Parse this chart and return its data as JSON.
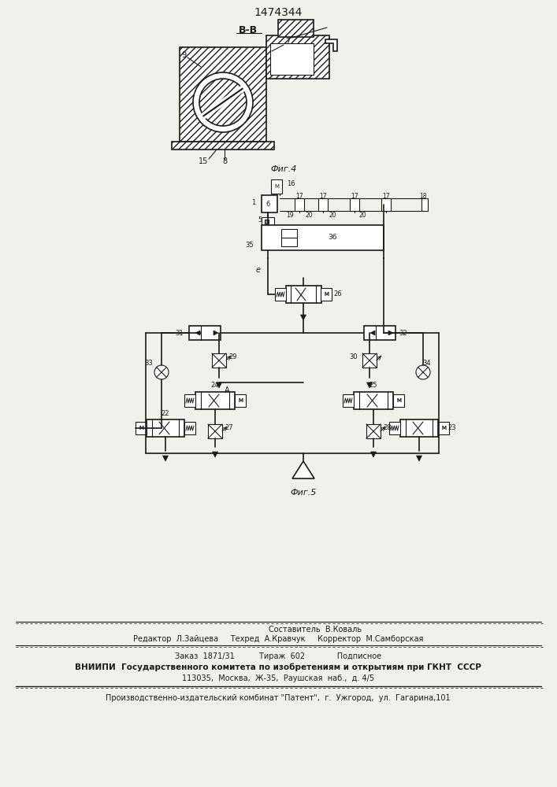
{
  "patent_number": "1474344",
  "fig4_label": "Фиг.4",
  "fig5_label": "Фиг.5",
  "view_label": "В-В",
  "bg_color": "#f2f0eb",
  "line_color": "#1a1a1a",
  "footer_lines": [
    "Составитель  В.Коваль",
    "Редактор  Л.Зайцева     Техред  А.Кравчук     Корректор  М.Самборская",
    "Заказ  1871/31          Тираж  602             Подписное",
    "ВНИИПИ  Государственного комитета по изобретениям и открытиям при ГКНТ  СССР",
    "113035,  Москва,  Ж-35,  Раушская  наб.,  д. 4/5",
    "Производственно-издательский комбинат \"Патент\",  г.  Ужгород,  ул.  Гагарина,101"
  ]
}
